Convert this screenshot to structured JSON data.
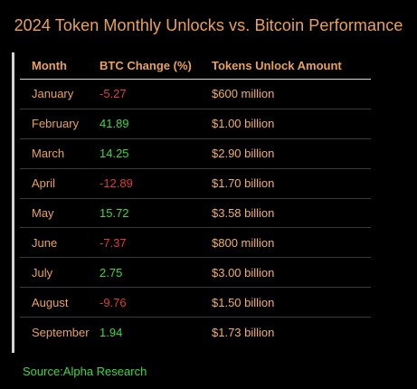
{
  "title": "2024 Token Monthly Unlocks vs. Bitcoin Performance",
  "columns": [
    "Month",
    "BTC Change (%)",
    "Tokens Unlock Amount"
  ],
  "rows": [
    {
      "month": "January",
      "btc_change": "-5.27",
      "unlock": "$600 million",
      "trend": "neg"
    },
    {
      "month": "February",
      "btc_change": "41.89",
      "unlock": "$1.00 billion",
      "trend": "pos"
    },
    {
      "month": "March",
      "btc_change": "14.25",
      "unlock": "$2.90 billion",
      "trend": "pos"
    },
    {
      "month": "April",
      "btc_change": "-12.89",
      "unlock": "$1.70 billion",
      "trend": "neg"
    },
    {
      "month": "May",
      "btc_change": "15.72",
      "unlock": "$3.58 billion",
      "trend": "pos"
    },
    {
      "month": "June",
      "btc_change": "-7.37",
      "unlock": "$800 million",
      "trend": "neg"
    },
    {
      "month": "July",
      "btc_change": "2.75",
      "unlock": "$3.00 billion",
      "trend": "pos"
    },
    {
      "month": "August",
      "btc_change": "-9.76",
      "unlock": "$1.50 billion",
      "trend": "neg"
    },
    {
      "month": "September",
      "btc_change": "1.94",
      "unlock": "$1.73 billion",
      "trend": "pos"
    }
  ],
  "source": "Source:Alpha Research",
  "colors": {
    "accent": "#e8a25a",
    "positive": "#3fd83f",
    "negative": "#e23a3a",
    "background": "#000000"
  }
}
